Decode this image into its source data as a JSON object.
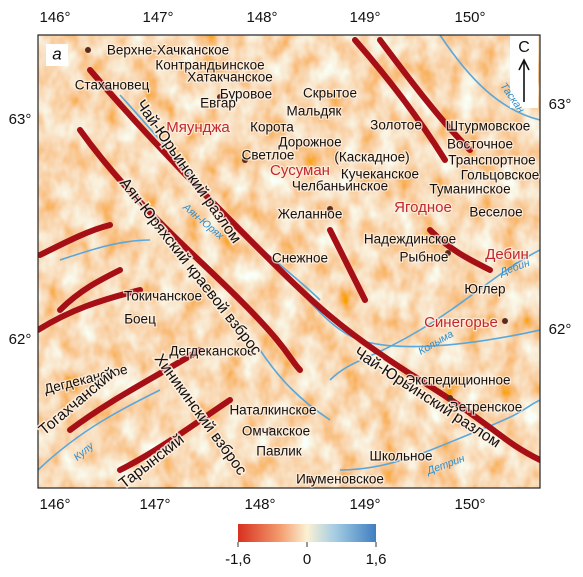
{
  "panel_label": "а",
  "north_label": "С",
  "top_ticks": [
    "146°",
    "147°",
    "148°",
    "149°",
    "150°"
  ],
  "bottom_ticks": [
    "146°",
    "147°",
    "148°",
    "149°",
    "150°"
  ],
  "left_ticks": [
    "63°",
    "62°"
  ],
  "right_ticks": [
    "63°",
    "62°"
  ],
  "settlements": [
    "Верхне-Хачканское",
    "Контрандьинское",
    "Стахановец",
    "Хатакчанское",
    "Буровое",
    "Скрытое",
    "Евгар",
    "Мальдяк",
    "Корота",
    "Золотое",
    "Штурмовское",
    "Дорожное",
    "Восточное",
    "Светлое",
    "(Каскадное)",
    "Транспортное",
    "Кучеканское",
    "Гольцовское",
    "Челбаньинское",
    "Туманинское",
    "Желанное",
    "Веселое",
    "Надеждинское",
    "Рыбное",
    "Снежное",
    "Юглер",
    "Токичанское",
    "Боец",
    "Дегдеканское",
    "Дегдеканское",
    "Экспедиционное",
    "Ветренское",
    "Наталкинское",
    "Омчакское",
    "Павлик",
    "Школьное",
    "Игуменовское"
  ],
  "district_centers": [
    "Мяунджа",
    "Сусуман",
    "Ягодное",
    "Дебин",
    "Синегорье"
  ],
  "faults": [
    "Чай-Юрьинский разлом",
    "Аян-Юряхский краевой взброс",
    "Чай-Юрьинский разлом",
    "Тогахчанский",
    "Хиникинский взброс",
    "Тарынский"
  ],
  "rivers": [
    "Аян-Юрях",
    "Таскан",
    "Дебин",
    "Колыма",
    "Детрин",
    "Кулу"
  ],
  "colorbar_ticks": [
    "-1,6",
    "0",
    "1,6"
  ]
}
